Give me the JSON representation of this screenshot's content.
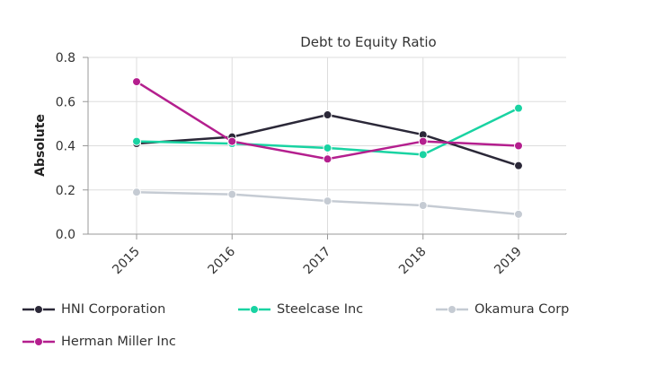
{
  "chart_data": {
    "type": "line",
    "title": "Debt to Equity Ratio",
    "xlabel": "",
    "ylabel": "Absolute",
    "x": [
      "2015",
      "2016",
      "2017",
      "2018",
      "2019"
    ],
    "ylim": [
      0,
      0.8
    ],
    "yticks": [
      "0.0",
      "0.2",
      "0.4",
      "0.6",
      "0.8"
    ],
    "grid": true,
    "legend_position": "bottom",
    "series": [
      {
        "name": "HNI Corporation",
        "color": "#2b2838",
        "values": [
          0.41,
          0.44,
          0.54,
          0.45,
          0.31
        ]
      },
      {
        "name": "Steelcase Inc",
        "color": "#19d3a2",
        "values": [
          0.42,
          0.41,
          0.39,
          0.36,
          0.57
        ]
      },
      {
        "name": "Okamura Corp",
        "color": "#c5cbd3",
        "values": [
          0.19,
          0.18,
          0.15,
          0.13,
          0.09
        ]
      },
      {
        "name": "Herman Miller Inc",
        "color": "#b41f8e",
        "values": [
          0.69,
          0.42,
          0.34,
          0.42,
          0.4
        ]
      }
    ]
  }
}
